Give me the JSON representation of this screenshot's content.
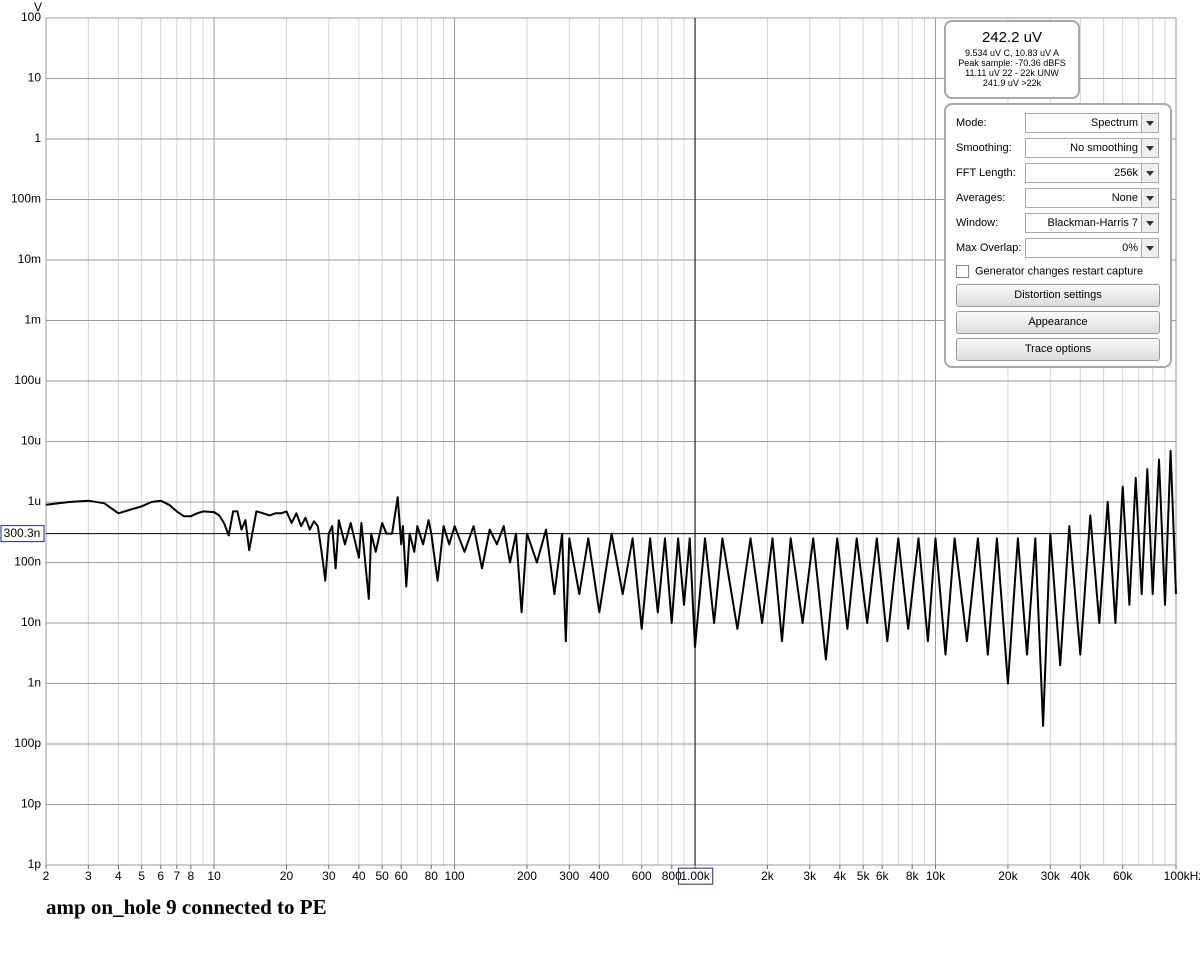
{
  "chart_data": {
    "type": "line",
    "title": "amp on_hole 9 connected to PE",
    "y_label": "V",
    "log_x": true,
    "log_y": true,
    "grid": true,
    "xlim": [
      2,
      100000
    ],
    "ylim": [
      1e-12,
      100
    ],
    "xticks": [
      2,
      3,
      4,
      5,
      6,
      7,
      8,
      10,
      20,
      30,
      40,
      50,
      60,
      80,
      100,
      200,
      300,
      400,
      600,
      800,
      {
        "value": 1000,
        "label": "1.00k"
      },
      {
        "value": 2000,
        "label": "2k"
      },
      {
        "value": 3000,
        "label": "3k"
      },
      {
        "value": 4000,
        "label": "4k"
      },
      {
        "value": 5000,
        "label": "5k"
      },
      {
        "value": 6000,
        "label": "6k"
      },
      {
        "value": 8000,
        "label": "8k"
      },
      {
        "value": 10000,
        "label": "10k"
      },
      {
        "value": 20000,
        "label": "20k"
      },
      {
        "value": 30000,
        "label": "30k"
      },
      {
        "value": 40000,
        "label": "40k"
      },
      {
        "value": 60000,
        "label": "60k"
      },
      {
        "value": 100000,
        "label": "100kHz"
      }
    ],
    "yticks": [
      100,
      10,
      1,
      {
        "value": 0.1,
        "label": "100m"
      },
      {
        "value": 0.01,
        "label": "10m"
      },
      {
        "value": 0.001,
        "label": "1m"
      },
      {
        "value": 0.0001,
        "label": "100u"
      },
      {
        "value": 1e-05,
        "label": "10u"
      },
      {
        "value": 1e-06,
        "label": "1u"
      },
      {
        "value": 1e-07,
        "label": "100n"
      },
      {
        "value": 1e-08,
        "label": "10n"
      },
      {
        "value": 1e-09,
        "label": "1n"
      },
      {
        "value": 1e-10,
        "label": "100p"
      },
      {
        "value": 1e-11,
        "label": "10p"
      },
      {
        "value": 1e-12,
        "label": "1p"
      }
    ],
    "cursor": {
      "x": 1000,
      "y": {
        "value": 3.003e-07,
        "label": "300.3n"
      }
    },
    "series": [
      {
        "color": "#000000",
        "x": [
          2,
          2.5,
          3,
          3.5,
          4,
          4.5,
          5,
          5.5,
          6,
          6.5,
          7,
          7.5,
          8,
          8.5,
          9,
          10,
          10.5,
          11,
          11.5,
          12,
          12.5,
          13,
          13.5,
          14,
          15,
          16,
          17,
          18,
          19,
          20,
          21,
          22,
          23,
          24,
          25,
          26,
          27,
          28,
          29,
          30,
          31,
          32,
          33,
          35,
          37,
          40,
          41,
          44,
          45,
          47,
          50,
          52,
          55,
          58,
          60,
          61,
          63,
          65,
          68,
          70,
          74,
          78,
          80,
          85,
          90,
          95,
          100,
          110,
          120,
          130,
          140,
          150,
          160,
          170,
          180,
          190,
          200,
          220,
          240,
          260,
          280,
          290,
          300,
          330,
          360,
          400,
          450,
          500,
          550,
          600,
          650,
          700,
          750,
          800,
          850,
          900,
          950,
          1000,
          1100,
          1200,
          1300,
          1500,
          1700,
          1900,
          2100,
          2300,
          2500,
          2800,
          3100,
          3500,
          3900,
          4300,
          4700,
          5200,
          5700,
          6300,
          7000,
          7700,
          8500,
          9300,
          10000,
          11000,
          12000,
          13500,
          15000,
          16500,
          18000,
          20000,
          22000,
          24000,
          26000,
          28000,
          30000,
          33000,
          36000,
          40000,
          44000,
          48000,
          52000,
          56000,
          60000,
          64000,
          68000,
          72000,
          76000,
          80000,
          85000,
          90000,
          95000,
          100000
        ],
        "values": [
          9e-07,
          1e-06,
          1.05e-06,
          9.5e-07,
          6.5e-07,
          7.5e-07,
          8.5e-07,
          1e-06,
          1.05e-06,
          9e-07,
          7e-07,
          5.8e-07,
          5.8e-07,
          6.5e-07,
          7e-07,
          6.8e-07,
          6e-07,
          4.5e-07,
          2.8e-07,
          7e-07,
          7e-07,
          3.5e-07,
          5e-07,
          1.6e-07,
          7e-07,
          6.5e-07,
          6e-07,
          6.5e-07,
          6.5e-07,
          7e-07,
          4.5e-07,
          6.5e-07,
          4e-07,
          5.5e-07,
          3.5e-07,
          4.8e-07,
          4e-07,
          1.5e-07,
          5e-08,
          3e-07,
          4e-07,
          8e-08,
          5e-07,
          2e-07,
          4.5e-07,
          1.2e-07,
          4.5e-07,
          2.5e-08,
          3e-07,
          1.5e-07,
          4.5e-07,
          3e-07,
          3e-07,
          1.2e-06,
          2e-07,
          4e-07,
          4e-08,
          3e-07,
          1.5e-07,
          4e-07,
          2e-07,
          5e-07,
          3e-07,
          5e-08,
          4e-07,
          2e-07,
          4e-07,
          1.5e-07,
          4e-07,
          8e-08,
          3.5e-07,
          2e-07,
          4e-07,
          1e-07,
          3e-07,
          1.5e-08,
          3e-07,
          1e-07,
          3.5e-07,
          3e-08,
          3e-07,
          5e-09,
          2.5e-07,
          3e-08,
          2.5e-07,
          1.5e-08,
          3e-07,
          3e-08,
          2.5e-07,
          8e-09,
          2.5e-07,
          1.5e-08,
          2.5e-07,
          1e-08,
          2.5e-07,
          2e-08,
          2.5e-07,
          4e-09,
          2.5e-07,
          1e-08,
          2.5e-07,
          8e-09,
          2.5e-07,
          1e-08,
          2.5e-07,
          5e-09,
          2.5e-07,
          1e-08,
          2.5e-07,
          2.5e-09,
          2.5e-07,
          8e-09,
          2.5e-07,
          1e-08,
          2.5e-07,
          5e-09,
          2.5e-07,
          8e-09,
          2.5e-07,
          5e-09,
          2.5e-07,
          3e-09,
          2.5e-07,
          5e-09,
          2.5e-07,
          3e-09,
          2.5e-07,
          1e-09,
          2.5e-07,
          3e-09,
          2.5e-07,
          2e-10,
          3e-07,
          2e-09,
          4e-07,
          3e-09,
          6e-07,
          1e-08,
          1e-06,
          1e-08,
          1.8e-06,
          2e-08,
          2.5e-06,
          3e-08,
          3.5e-06,
          3e-08,
          5e-06,
          2e-08,
          7e-06,
          3e-08
        ]
      }
    ]
  },
  "readout": {
    "main": "242.2 uV",
    "lines": [
      "9.534 uV C, 10.83 uV A",
      "Peak sample: -70.36 dBFS",
      "11.11 uV 22 - 22k UNW",
      "241.9 uV >22k"
    ]
  },
  "controls": [
    {
      "label": "Mode:",
      "value": "Spectrum"
    },
    {
      "label": "Smoothing:",
      "value": "No  smoothing"
    },
    {
      "label": "FFT Length:",
      "value": "256k"
    },
    {
      "label": "Averages:",
      "value": "None"
    },
    {
      "label": "Window:",
      "value": "Blackman-Harris 7"
    },
    {
      "label": "Max Overlap:",
      "value": "0%"
    }
  ],
  "checkbox": "Generator changes restart capture",
  "buttons": [
    "Distortion settings",
    "Appearance",
    "Trace options"
  ]
}
